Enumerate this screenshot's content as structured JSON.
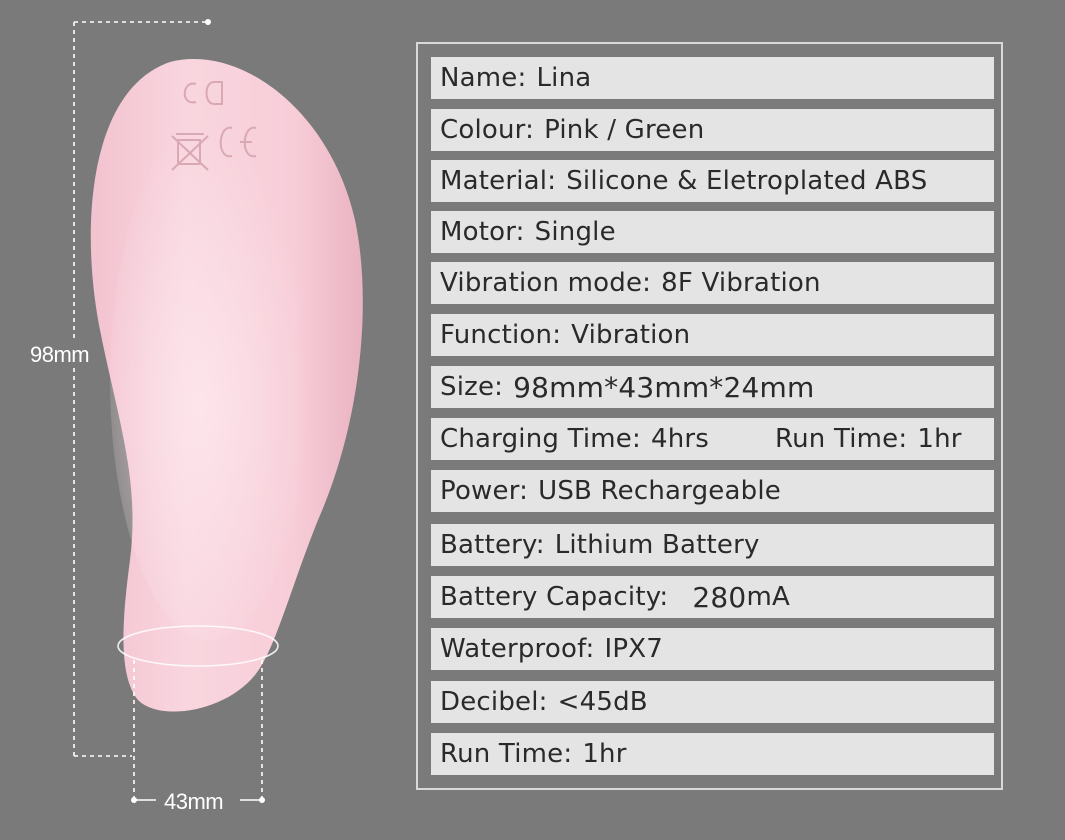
{
  "dimensions": {
    "height": "98mm",
    "width": "43mm"
  },
  "product_marks": {
    "dc": "DC",
    "ce": "CE"
  },
  "colors": {
    "background": "#7a7a7a",
    "row_fill": "#e4e4e4",
    "product_pink": "#f7cfd9"
  },
  "specs": [
    {
      "label": "Name:",
      "value": "Lina"
    },
    {
      "label": "Colour:",
      "value": "Pink / Green"
    },
    {
      "label": "Material:",
      "value": "Silicone & Eletroplated ABS"
    },
    {
      "label": "Motor:",
      "value": "Single"
    },
    {
      "label": "Vibration mode:",
      "value": "8F Vibration"
    },
    {
      "label": "Function:",
      "value": "Vibration"
    },
    {
      "label": "Size:",
      "value": "98mm*43mm*24mm"
    },
    {
      "label": "Charging Time:",
      "value": "4hrs",
      "label2": "Run Time:",
      "value2": "1hr"
    },
    {
      "label": "Power:",
      "value": "USB Rechargeable"
    },
    {
      "label": "Battery:",
      "value": "Lithium Battery"
    },
    {
      "label": "Battery Capacity:",
      "value": "280",
      "unit": "mA"
    },
    {
      "label": "Waterproof:",
      "value": "IPX7"
    },
    {
      "label": "Decibel:",
      "value": "<45dB"
    },
    {
      "label": "Run Time:",
      "value": "1hr"
    }
  ]
}
